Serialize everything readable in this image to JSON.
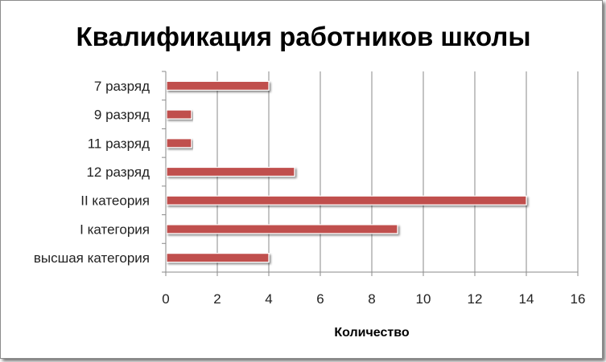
{
  "chart_data": {
    "type": "bar",
    "orientation": "horizontal",
    "title": "Квалификация работников школы",
    "xlabel": "Количество",
    "ylabel": "",
    "categories": [
      "7 разряд",
      "9 разряд",
      "11 разряд",
      "12 разряд",
      "II катеория",
      "I категория",
      "высшая категория"
    ],
    "values": [
      4,
      1,
      1,
      5,
      14,
      9,
      4
    ],
    "xlim": [
      0,
      16
    ],
    "xticks": [
      0,
      2,
      4,
      6,
      8,
      10,
      12,
      14,
      16
    ],
    "grid": true,
    "legend": "none",
    "bar_color": "#c0504d"
  }
}
